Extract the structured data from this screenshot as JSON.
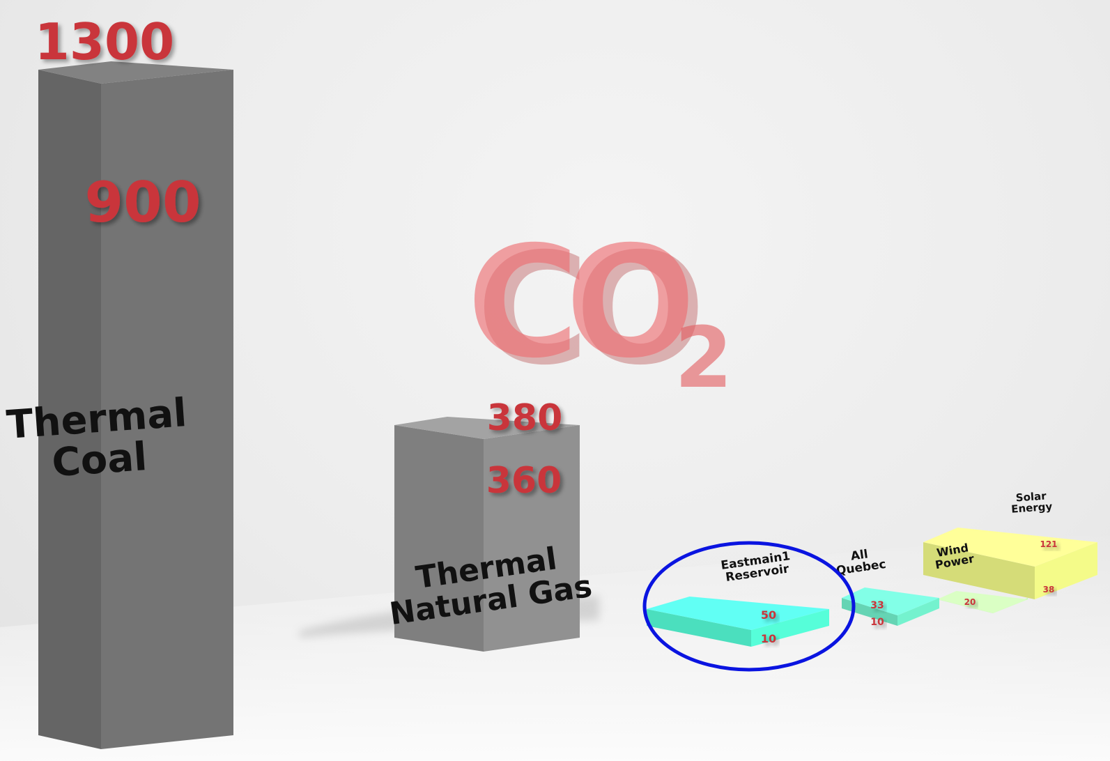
{
  "chart_data": {
    "type": "bar",
    "title": "CO2",
    "categories": [
      "Thermal Coal",
      "Thermal Natural Gas",
      "Eastmain1 Reservoir",
      "All Quebec",
      "Wind Power",
      "Solar Energy"
    ],
    "bars": [
      {
        "label_lines": [
          "Thermal",
          "Coal"
        ],
        "value_labels": [
          "1300",
          "900"
        ],
        "low": 900,
        "high": 1300,
        "color": "#6e6e6e"
      },
      {
        "label_lines": [
          "Thermal",
          "Natural Gas"
        ],
        "value_labels": [
          "380",
          "360"
        ],
        "low": 360,
        "high": 380,
        "color": "#8a8a8a"
      },
      {
        "label_lines": [
          "Eastmain1",
          "Reservoir"
        ],
        "value_labels": [
          "50",
          "10"
        ],
        "low": 10,
        "high": 50,
        "color": "#52f2cf",
        "highlighted": true
      },
      {
        "label_lines": [
          "All",
          "Quebec"
        ],
        "value_labels": [
          "33",
          "10"
        ],
        "low": 10,
        "high": 33,
        "color": "#6ee6c4"
      },
      {
        "label_lines": [
          "Wind",
          "Power"
        ],
        "value_labels": [
          "20"
        ],
        "low": null,
        "high": 20,
        "color": "#b9f2a6"
      },
      {
        "label_lines": [
          "Solar",
          "Energy"
        ],
        "value_labels": [
          "121",
          "38"
        ],
        "low": 38,
        "high": 121,
        "color": "#e8ef82"
      }
    ],
    "colors": {
      "value_text": "#c9353a",
      "label_text": "#111111",
      "highlight_ellipse": "#0a14e0",
      "co2_text": "#e35a5e"
    },
    "grid": false,
    "legend": "none"
  }
}
